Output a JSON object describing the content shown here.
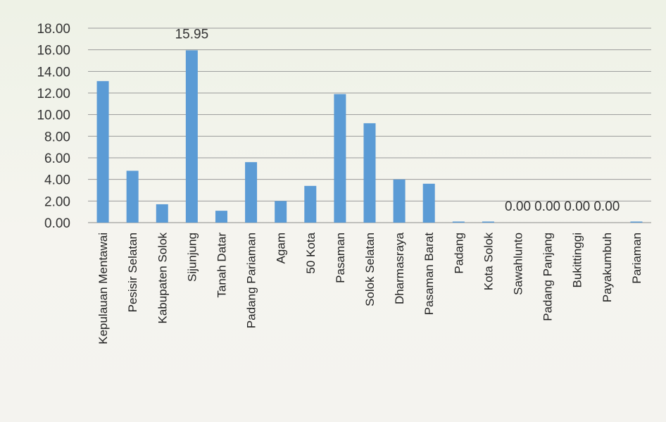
{
  "chart_data": {
    "type": "bar",
    "categories": [
      "Kepulauan Mentawai",
      "Pesisir Selatan",
      "Kabupaten Solok",
      "Sijunjung",
      "Tanah Datar",
      "Padang Pariaman",
      "Agam",
      "50 Kota",
      "Pasaman",
      "Solok Selatan",
      "Dharmasraya",
      "Pasaman Barat",
      "Padang",
      "Kota Solok",
      "Sawahlunto",
      "Padang Panjang",
      "Bukittinggi",
      "Payakumbuh",
      "Pariaman"
    ],
    "values": [
      13.1,
      4.8,
      1.7,
      15.95,
      1.1,
      5.6,
      2.0,
      3.4,
      11.9,
      9.2,
      4.0,
      3.6,
      0.1,
      0.1,
      0.0,
      0.0,
      0.0,
      0.0,
      0.1
    ],
    "data_labels": [
      {
        "index": 3,
        "text": "15.95"
      },
      {
        "index": 14,
        "text": "0.00"
      },
      {
        "index": 15,
        "text": "0.00"
      },
      {
        "index": 16,
        "text": "0.00"
      },
      {
        "index": 17,
        "text": "0.00"
      }
    ],
    "yticks": [
      "0.00",
      "2.00",
      "4.00",
      "6.00",
      "8.00",
      "10.00",
      "12.00",
      "14.00",
      "16.00",
      "18.00"
    ],
    "ylim": [
      0,
      18
    ],
    "grid": true,
    "bar_color": "#5b9bd5",
    "title": "",
    "xlabel": "",
    "ylabel": ""
  }
}
